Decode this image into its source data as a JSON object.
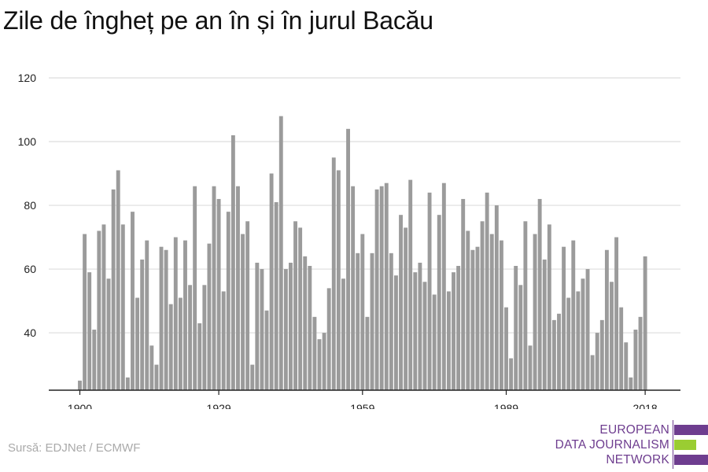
{
  "title": "Zile de îngheț pe an în și în jurul Bacău",
  "source": "Sursă: EDJNet / ECMWF",
  "logo": {
    "lines": [
      "EUROPEAN",
      "DATA JOURNALISM",
      "NETWORK"
    ],
    "colors": [
      "#6e3d8f",
      "#9acd32",
      "#6e3d8f"
    ]
  },
  "colors": {
    "bar": "#9b9b9b",
    "grid": "#dddddd",
    "axis": "#222222",
    "text": "#222222"
  },
  "chart_data": {
    "type": "bar",
    "x_start": 1900,
    "x_end": 2018,
    "x_ticks": [
      1900,
      1929,
      1959,
      1989,
      2018
    ],
    "y_ticks": [
      40,
      60,
      80,
      100,
      120
    ],
    "ylim": [
      22,
      120
    ],
    "grid": true,
    "values": [
      25,
      71,
      59,
      41,
      72,
      74,
      57,
      85,
      91,
      74,
      26,
      78,
      51,
      63,
      69,
      36,
      30,
      67,
      66,
      49,
      70,
      51,
      69,
      55,
      86,
      43,
      55,
      68,
      86,
      82,
      53,
      78,
      102,
      86,
      71,
      75,
      30,
      62,
      60,
      47,
      90,
      81,
      108,
      60,
      62,
      75,
      73,
      64,
      61,
      45,
      38,
      40,
      54,
      95,
      91,
      57,
      104,
      86,
      65,
      71,
      45,
      65,
      85,
      86,
      87,
      65,
      58,
      77,
      73,
      88,
      59,
      62,
      56,
      84,
      52,
      77,
      87,
      53,
      59,
      61,
      82,
      72,
      66,
      67,
      75,
      84,
      71,
      80,
      69,
      48,
      32,
      61,
      55,
      75,
      36,
      71,
      82,
      63,
      74,
      44,
      46,
      67,
      51,
      69,
      53,
      57,
      60,
      33,
      40,
      44,
      66,
      56,
      70,
      48,
      37,
      26,
      41,
      45,
      64
    ]
  }
}
